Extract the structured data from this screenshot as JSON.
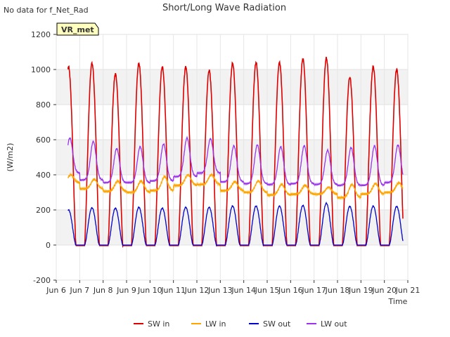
{
  "chart_data": {
    "type": "line",
    "title": "Short/Long Wave Radiation",
    "xlabel": "Time",
    "ylabel": "(W/m2)",
    "corner_note": "No data for f_Net_Rad",
    "site_badge": "VR_met",
    "xlim": [
      6,
      21
    ],
    "ylim": [
      -200,
      1200
    ],
    "yticks": [
      -200,
      0,
      200,
      400,
      600,
      800,
      1000,
      1200
    ],
    "xticks": [
      {
        "value": 6,
        "label": "Jun 6"
      },
      {
        "value": 7,
        "label": "Jun 7"
      },
      {
        "value": 8,
        "label": "Jun 8"
      },
      {
        "value": 9,
        "label": "Jun 9"
      },
      {
        "value": 10,
        "label": "Jun 10"
      },
      {
        "value": 11,
        "label": "Jun 11"
      },
      {
        "value": 12,
        "label": "Jun 12"
      },
      {
        "value": 13,
        "label": "Jun 13"
      },
      {
        "value": 14,
        "label": "Jun 14"
      },
      {
        "value": 15,
        "label": "Jun 15"
      },
      {
        "value": 16,
        "label": "Jun 16"
      },
      {
        "value": 17,
        "label": "Jun 17"
      },
      {
        "value": 18,
        "label": "Jun 18"
      },
      {
        "value": 19,
        "label": "Jun 19"
      },
      {
        "value": 20,
        "label": "Jun 20"
      },
      {
        "value": 21,
        "label": "Jun 21"
      }
    ],
    "grid": true,
    "legend_position": "bottom-center",
    "x_start": 6.5,
    "x_end": 20.8,
    "daily": [
      {
        "day": 6,
        "sw_peak": 1015,
        "sw_out_peak": 200,
        "lw_in_base": 355,
        "lw_in_amp": 45,
        "lw_out_base": 410,
        "lw_out_amp": 200
      },
      {
        "day": 7,
        "sw_peak": 1035,
        "sw_out_peak": 212,
        "lw_in_base": 320,
        "lw_in_amp": 55,
        "lw_out_base": 370,
        "lw_out_amp": 220
      },
      {
        "day": 8,
        "sw_peak": 975,
        "sw_out_peak": 210,
        "lw_in_base": 305,
        "lw_in_amp": 60,
        "lw_out_base": 355,
        "lw_out_amp": 195
      },
      {
        "day": 9,
        "sw_peak": 1035,
        "sw_out_peak": 215,
        "lw_in_base": 300,
        "lw_in_amp": 65,
        "lw_out_base": 355,
        "lw_out_amp": 205
      },
      {
        "day": 10,
        "sw_peak": 1015,
        "sw_out_peak": 210,
        "lw_in_base": 310,
        "lw_in_amp": 80,
        "lw_out_base": 365,
        "lw_out_amp": 210
      },
      {
        "day": 11,
        "sw_peak": 1015,
        "sw_out_peak": 215,
        "lw_in_base": 340,
        "lw_in_amp": 60,
        "lw_out_base": 390,
        "lw_out_amp": 220
      },
      {
        "day": 12,
        "sw_peak": 995,
        "sw_out_peak": 215,
        "lw_in_base": 345,
        "lw_in_amp": 55,
        "lw_out_base": 410,
        "lw_out_amp": 195
      },
      {
        "day": 13,
        "sw_peak": 1035,
        "sw_out_peak": 222,
        "lw_in_base": 310,
        "lw_in_amp": 50,
        "lw_out_base": 360,
        "lw_out_amp": 205
      },
      {
        "day": 14,
        "sw_peak": 1040,
        "sw_out_peak": 222,
        "lw_in_base": 300,
        "lw_in_amp": 65,
        "lw_out_base": 350,
        "lw_out_amp": 220
      },
      {
        "day": 15,
        "sw_peak": 1040,
        "sw_out_peak": 222,
        "lw_in_base": 285,
        "lw_in_amp": 60,
        "lw_out_base": 345,
        "lw_out_amp": 215
      },
      {
        "day": 16,
        "sw_peak": 1060,
        "sw_out_peak": 225,
        "lw_in_base": 290,
        "lw_in_amp": 50,
        "lw_out_base": 350,
        "lw_out_amp": 215
      },
      {
        "day": 17,
        "sw_peak": 1065,
        "sw_out_peak": 238,
        "lw_in_base": 290,
        "lw_in_amp": 40,
        "lw_out_base": 345,
        "lw_out_amp": 195
      },
      {
        "day": 18,
        "sw_peak": 955,
        "sw_out_peak": 220,
        "lw_in_base": 270,
        "lw_in_amp": 75,
        "lw_out_base": 340,
        "lw_out_amp": 215
      },
      {
        "day": 19,
        "sw_peak": 1015,
        "sw_out_peak": 222,
        "lw_in_base": 290,
        "lw_in_amp": 60,
        "lw_out_base": 340,
        "lw_out_amp": 225
      },
      {
        "day": 20,
        "sw_peak": 1000,
        "sw_out_peak": 220,
        "lw_in_base": 300,
        "lw_in_amp": 55,
        "lw_out_base": 355,
        "lw_out_amp": 215
      }
    ],
    "series": [
      {
        "name": "SW in",
        "key": "sw_in",
        "color": "#dd0000"
      },
      {
        "name": "LW in",
        "key": "lw_in",
        "color": "#ffa500"
      },
      {
        "name": "SW out",
        "key": "sw_out",
        "color": "#0000cc"
      },
      {
        "name": "LW out",
        "key": "lw_out",
        "color": "#9933ee"
      }
    ]
  }
}
